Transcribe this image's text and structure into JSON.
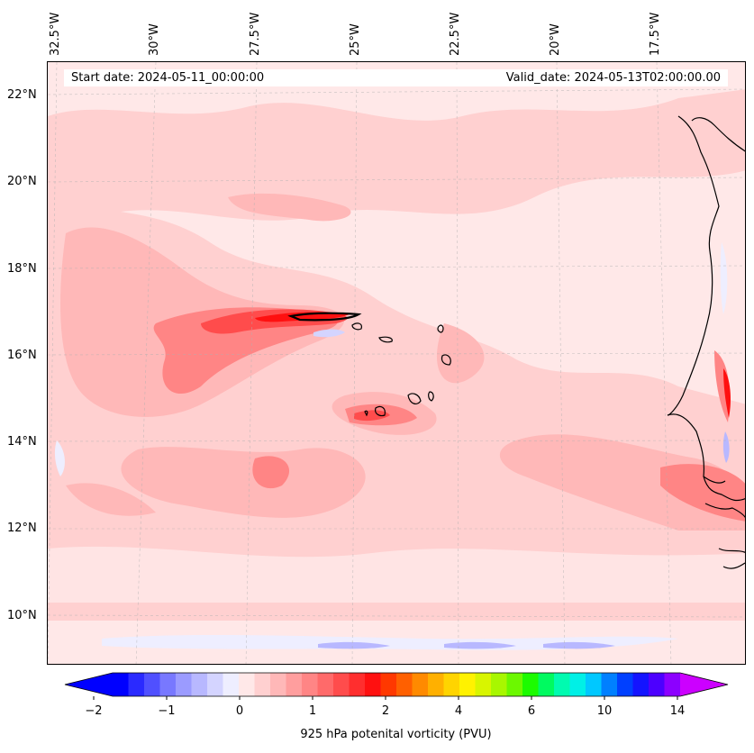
{
  "header": {
    "start_date": "Start date: 2024-05-11_00:00:00",
    "valid_date": "Valid_date: 2024-05-13T02:00:00.00"
  },
  "axes": {
    "longitude_labels": [
      "32.5°W",
      "30°W",
      "27.5°W",
      "25°W",
      "22.5°W",
      "20°W",
      "17.5°W"
    ],
    "latitude_labels": [
      "22°N",
      "20°N",
      "18°N",
      "16°N",
      "14°N",
      "12°N",
      "10°N"
    ]
  },
  "colorbar": {
    "label": "925 hPa potenital vorticity (PVU)",
    "tick_labels": [
      "−2",
      "−1",
      "0",
      "1",
      "2",
      "4",
      "6",
      "10",
      "14"
    ],
    "colors": [
      "#0000ff",
      "#2a2aff",
      "#5050ff",
      "#7878ff",
      "#9b9bff",
      "#b8b8ff",
      "#d4d4ff",
      "#eeeeff",
      "#ffe8e8",
      "#ffd0d0",
      "#ffb8b8",
      "#ff9e9e",
      "#ff8585",
      "#ff6a6a",
      "#ff4c4c",
      "#ff2e2e",
      "#ff1010",
      "#ff3800",
      "#ff6000",
      "#ff8a00",
      "#ffb000",
      "#ffd400",
      "#fff200",
      "#d8f500",
      "#a8f700",
      "#6cf800",
      "#1cfb00",
      "#00fa60",
      "#00fbb0",
      "#00f0e6",
      "#00c8ff",
      "#0080ff",
      "#0040ff",
      "#1414ff",
      "#4c00ff",
      "#8c00ff"
    ],
    "extend_low": "#0000ff",
    "extend_high": "#cc00ff"
  },
  "map_colors": {
    "background": "#ffe8e8",
    "level1": "#ffd0d0",
    "level2": "#ffb8b8",
    "level3": "#ff8585",
    "level4": "#ff4c4c",
    "level5": "#ff1010",
    "negative1": "#eeeeff",
    "negative2": "#b8b8ff",
    "coast": "#000000"
  }
}
